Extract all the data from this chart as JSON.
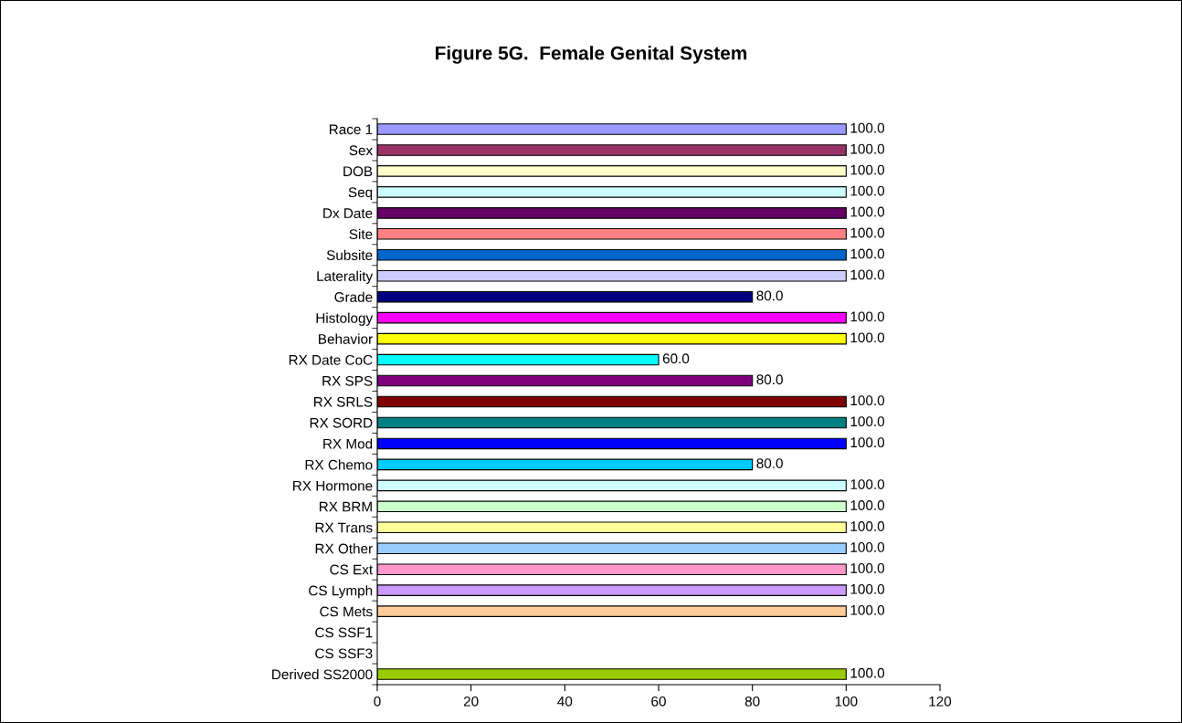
{
  "chart_data": {
    "type": "bar",
    "orientation": "horizontal",
    "title": "Figure 5G.  Female Genital System",
    "categories": [
      "Race 1",
      "Sex",
      "DOB",
      "Seq",
      "Dx Date",
      "Site",
      "Subsite",
      "Laterality",
      "Grade",
      "Histology",
      "Behavior",
      "RX Date CoC",
      "RX SPS",
      "RX SRLS",
      "RX SORD",
      "RX Mod",
      "RX Chemo",
      "RX Hormone",
      "RX BRM",
      "RX Trans",
      "RX Other",
      "CS Ext",
      "CS Lymph",
      "CS Mets",
      "CS SSF1",
      "CS SSF3",
      "Derived SS2000"
    ],
    "values": [
      100,
      100,
      100,
      100,
      100,
      100,
      100,
      100,
      80,
      100,
      100,
      60,
      80,
      100,
      100,
      100,
      80,
      100,
      100,
      100,
      100,
      100,
      100,
      100,
      null,
      null,
      100
    ],
    "value_labels": [
      "100.0",
      "100.0",
      "100.0",
      "100.0",
      "100.0",
      "100.0",
      "100.0",
      "100.0",
      "80.0",
      "100.0",
      "100.0",
      "60.0",
      "80.0",
      "100.0",
      "100.0",
      "100.0",
      "80.0",
      "100.0",
      "100.0",
      "100.0",
      "100.0",
      "100.0",
      "100.0",
      "100.0",
      null,
      null,
      "100.0"
    ],
    "colors": [
      "#9999ff",
      "#993366",
      "#ffffcc",
      "#ccffff",
      "#660066",
      "#ff8080",
      "#0066cc",
      "#ccccff",
      "#000080",
      "#ff00ff",
      "#ffff00",
      "#00ffff",
      "#800080",
      "#800000",
      "#008080",
      "#0000ff",
      "#00ccff",
      "#ccffff",
      "#ccffcc",
      "#ffff99",
      "#99ccff",
      "#ff99cc",
      "#cc99ff",
      "#ffcc99",
      "#cccccc",
      "#cccccc",
      "#99cc00"
    ],
    "xlim": [
      0,
      120
    ],
    "xticks": [
      0,
      20,
      40,
      60,
      80,
      100,
      120
    ],
    "grid": false
  }
}
